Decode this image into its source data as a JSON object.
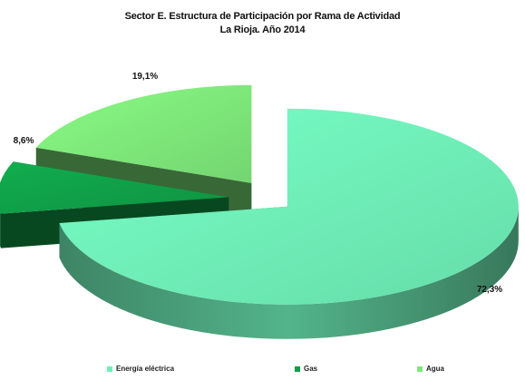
{
  "chart_data": {
    "type": "pie",
    "title": "Sector E. Estructura de Participación por Rama de Actividad",
    "subtitle": "La Rioja. Año 2014",
    "categories": [
      "Energía eléctrica",
      "Gas",
      "Agua"
    ],
    "values": [
      72.3,
      8.6,
      19.1
    ],
    "data_labels": [
      "72,3%",
      "8,6%",
      "19,1%"
    ],
    "colors": [
      "#6ff0b8",
      "#10a048",
      "#7ee87a"
    ],
    "exploded": true,
    "three_d": true,
    "legend_position": "bottom"
  }
}
